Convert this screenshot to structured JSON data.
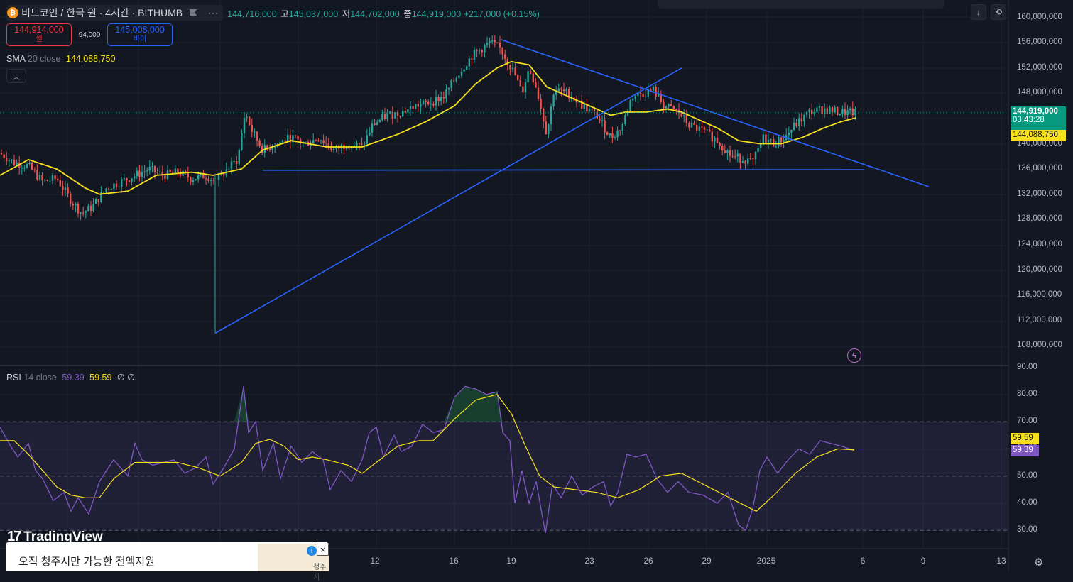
{
  "header": {
    "symbol": "비트코인 / 한국 원 · 4시간 · BITHUMB",
    "coin_icon": "bitcoin-icon",
    "ohlc": {
      "open_value": "144,716,000",
      "high_label": "고",
      "high_value": "145,037,000",
      "low_label": "저",
      "low_value": "144,702,000",
      "close_label": "종",
      "close_value": "144,919,000",
      "change": "+217,000 (+0.15%)"
    },
    "more": "···"
  },
  "trade": {
    "sell_price": "144,914,000",
    "sell_label": "셀",
    "spread": "94,000",
    "buy_price": "145,008,000",
    "buy_label": "바이"
  },
  "sma_legend": {
    "name": "SMA",
    "params": "20 close",
    "value": "144,088,750"
  },
  "rsi_legend": {
    "name": "RSI",
    "params": "14 close",
    "value1": "59.39",
    "value2": "59.59",
    "na": "∅ ∅"
  },
  "price_axis": {
    "labels": [
      "160,000,000",
      "156,000,000",
      "152,000,000",
      "148,000,000",
      "140,000,000",
      "136,000,000",
      "132,000,000",
      "128,000,000",
      "124,000,000",
      "120,000,000",
      "116,000,000",
      "112,000,000",
      "108,000,000"
    ],
    "last_price": "144,919,000",
    "countdown": "03:43:28",
    "sma_price": "144,088,750"
  },
  "rsi_axis": {
    "labels": [
      "90.00",
      "80.00",
      "70.00",
      "60.00",
      "50.00",
      "40.00",
      "30.00"
    ],
    "tag_yellow": "59.59",
    "tag_purple": "59.39"
  },
  "date_axis": [
    "12",
    "16",
    "19",
    "23",
    "26",
    "29",
    "2025",
    "6",
    "9",
    "13"
  ],
  "logo": "TradingView",
  "ad": {
    "text": "오직 청주시만 가능한 전액지원",
    "image_text": "청주시",
    "info_icon": "i",
    "close_icon": "×"
  },
  "colors": {
    "background": "#131722",
    "up": "#26a69a",
    "down": "#ef5350",
    "sma": "#f7e01c",
    "rsi": "#7e57c2",
    "trendline": "#2962ff"
  },
  "chart_data": [
    {
      "type": "candlestick",
      "title": "비트코인 / 한국 원 · 4시간 · BITHUMB",
      "ylim": [
        106000000,
        162000000
      ],
      "x_ticks": [
        "12",
        "16",
        "19",
        "23",
        "26",
        "29",
        "2025",
        "6",
        "9",
        "13"
      ],
      "close_path": [
        [
          0,
          138.5
        ],
        [
          20,
          137
        ],
        [
          40,
          136.5
        ],
        [
          60,
          134
        ],
        [
          80,
          134.5
        ],
        [
          100,
          131
        ],
        [
          115,
          129
        ],
        [
          130,
          130
        ],
        [
          150,
          133
        ],
        [
          170,
          134
        ],
        [
          190,
          135
        ],
        [
          210,
          136
        ],
        [
          230,
          135
        ],
        [
          250,
          135.5
        ],
        [
          270,
          134.5
        ],
        [
          290,
          135
        ],
        [
          305,
          134
        ],
        [
          320,
          136
        ],
        [
          335,
          137.5
        ],
        [
          345,
          145
        ],
        [
          355,
          142
        ],
        [
          370,
          139
        ],
        [
          390,
          140
        ],
        [
          410,
          141
        ],
        [
          430,
          140
        ],
        [
          450,
          141
        ],
        [
          470,
          139
        ],
        [
          490,
          140
        ],
        [
          510,
          139.5
        ],
        [
          525,
          143
        ],
        [
          545,
          144.5
        ],
        [
          565,
          145
        ],
        [
          585,
          146
        ],
        [
          605,
          146.5
        ],
        [
          625,
          147.5
        ],
        [
          645,
          151
        ],
        [
          665,
          154
        ],
        [
          690,
          156
        ],
        [
          705,
          155
        ],
        [
          715,
          153
        ],
        [
          725,
          151
        ],
        [
          735,
          148
        ],
        [
          745,
          152
        ],
        [
          755,
          149
        ],
        [
          770,
          141.5
        ],
        [
          780,
          148.5
        ],
        [
          800,
          148
        ],
        [
          820,
          146
        ],
        [
          840,
          144.5
        ],
        [
          860,
          141
        ],
        [
          875,
          142.5
        ],
        [
          890,
          147.5
        ],
        [
          905,
          148
        ],
        [
          920,
          148.5
        ],
        [
          935,
          146
        ],
        [
          955,
          145
        ],
        [
          970,
          143
        ],
        [
          990,
          142
        ],
        [
          1010,
          140.5
        ],
        [
          1030,
          138
        ],
        [
          1050,
          137.5
        ],
        [
          1060,
          137
        ],
        [
          1075,
          141
        ],
        [
          1090,
          140
        ],
        [
          1105,
          141
        ],
        [
          1120,
          143
        ],
        [
          1140,
          145
        ],
        [
          1160,
          145.5
        ],
        [
          1180,
          145
        ],
        [
          1205,
          144.9
        ]
      ],
      "sma_path": [
        [
          0,
          135
        ],
        [
          40,
          137.5
        ],
        [
          80,
          136
        ],
        [
          120,
          133
        ],
        [
          140,
          132
        ],
        [
          180,
          132.5
        ],
        [
          220,
          135
        ],
        [
          270,
          135.5
        ],
        [
          300,
          135
        ],
        [
          340,
          136
        ],
        [
          370,
          139
        ],
        [
          410,
          140.5
        ],
        [
          460,
          139.5
        ],
        [
          510,
          139.5
        ],
        [
          560,
          141.5
        ],
        [
          600,
          143.5
        ],
        [
          640,
          146
        ],
        [
          670,
          149.5
        ],
        [
          700,
          152
        ],
        [
          720,
          153
        ],
        [
          745,
          152.5
        ],
        [
          770,
          149
        ],
        [
          800,
          147.5
        ],
        [
          830,
          146
        ],
        [
          860,
          144.5
        ],
        [
          880,
          145
        ],
        [
          910,
          145
        ],
        [
          940,
          145.5
        ],
        [
          960,
          145
        ],
        [
          980,
          144
        ],
        [
          1010,
          142.5
        ],
        [
          1040,
          140.5
        ],
        [
          1070,
          140
        ],
        [
          1100,
          140
        ],
        [
          1130,
          141
        ],
        [
          1160,
          142.5
        ],
        [
          1185,
          143.5
        ],
        [
          1205,
          144.09
        ]
      ],
      "trendlines": [
        {
          "name": "horizontal-support",
          "from": [
            370,
            135.8
          ],
          "to": [
            1217,
            135.9
          ]
        },
        {
          "name": "descending-resistance",
          "from": [
            705,
            156.5
          ],
          "to": [
            1308,
            133.2
          ]
        },
        {
          "name": "ascending-line",
          "from": [
            303,
            110
          ],
          "to": [
            960,
            152
          ]
        }
      ],
      "last_price": 144919000,
      "sma_value": 144088750
    },
    {
      "type": "line",
      "title": "RSI 14 close",
      "ylim": [
        27,
        92
      ],
      "bands": {
        "upper": 70,
        "lower": 30,
        "middle": 50
      },
      "rsi_path": [
        [
          0,
          68
        ],
        [
          15,
          61
        ],
        [
          25,
          57
        ],
        [
          40,
          62
        ],
        [
          50,
          52
        ],
        [
          60,
          49
        ],
        [
          75,
          41
        ],
        [
          90,
          44
        ],
        [
          100,
          37
        ],
        [
          110,
          42
        ],
        [
          125,
          36
        ],
        [
          140,
          48
        ],
        [
          160,
          56
        ],
        [
          180,
          50
        ],
        [
          190,
          62
        ],
        [
          200,
          56
        ],
        [
          215,
          54
        ],
        [
          230,
          55
        ],
        [
          245,
          56
        ],
        [
          260,
          51
        ],
        [
          275,
          53
        ],
        [
          290,
          57
        ],
        [
          300,
          47
        ],
        [
          315,
          53
        ],
        [
          330,
          60
        ],
        [
          343,
          83
        ],
        [
          350,
          66
        ],
        [
          360,
          70
        ],
        [
          370,
          52
        ],
        [
          385,
          62
        ],
        [
          395,
          49
        ],
        [
          410,
          61
        ],
        [
          425,
          55
        ],
        [
          440,
          59
        ],
        [
          455,
          56
        ],
        [
          465,
          45
        ],
        [
          480,
          52
        ],
        [
          495,
          48
        ],
        [
          510,
          56
        ],
        [
          520,
          66
        ],
        [
          530,
          68
        ],
        [
          540,
          57
        ],
        [
          555,
          65
        ],
        [
          565,
          59
        ],
        [
          580,
          61
        ],
        [
          595,
          69
        ],
        [
          610,
          66
        ],
        [
          625,
          67
        ],
        [
          640,
          79
        ],
        [
          655,
          83
        ],
        [
          670,
          82
        ],
        [
          685,
          80
        ],
        [
          700,
          81
        ],
        [
          708,
          66
        ],
        [
          718,
          63
        ],
        [
          725,
          40
        ],
        [
          735,
          52
        ],
        [
          745,
          40
        ],
        [
          755,
          48
        ],
        [
          768,
          29
        ],
        [
          778,
          47
        ],
        [
          790,
          42
        ],
        [
          805,
          50
        ],
        [
          820,
          43
        ],
        [
          835,
          46
        ],
        [
          850,
          48
        ],
        [
          860,
          39
        ],
        [
          870,
          44
        ],
        [
          883,
          58
        ],
        [
          895,
          57
        ],
        [
          910,
          58
        ],
        [
          925,
          49
        ],
        [
          940,
          44
        ],
        [
          955,
          48
        ],
        [
          970,
          44
        ],
        [
          990,
          43
        ],
        [
          1010,
          40
        ],
        [
          1025,
          44
        ],
        [
          1040,
          32
        ],
        [
          1050,
          30
        ],
        [
          1060,
          38
        ],
        [
          1070,
          52
        ],
        [
          1080,
          57
        ],
        [
          1095,
          51
        ],
        [
          1110,
          56
        ],
        [
          1125,
          60
        ],
        [
          1140,
          58
        ],
        [
          1155,
          63
        ],
        [
          1170,
          62
        ],
        [
          1185,
          61
        ],
        [
          1203,
          59.4
        ]
      ],
      "signal_path": [
        [
          0,
          63
        ],
        [
          20,
          63
        ],
        [
          40,
          58
        ],
        [
          60,
          52
        ],
        [
          80,
          46
        ],
        [
          100,
          43
        ],
        [
          120,
          42
        ],
        [
          140,
          42
        ],
        [
          160,
          49
        ],
        [
          190,
          55
        ],
        [
          220,
          55
        ],
        [
          250,
          55
        ],
        [
          280,
          53
        ],
        [
          310,
          50
        ],
        [
          340,
          55
        ],
        [
          360,
          62
        ],
        [
          380,
          63.5
        ],
        [
          400,
          61
        ],
        [
          420,
          56
        ],
        [
          440,
          57
        ],
        [
          460,
          56
        ],
        [
          490,
          54
        ],
        [
          510,
          51
        ],
        [
          530,
          55
        ],
        [
          560,
          61
        ],
        [
          590,
          63
        ],
        [
          610,
          63
        ],
        [
          640,
          71
        ],
        [
          670,
          78
        ],
        [
          700,
          80
        ],
        [
          720,
          73
        ],
        [
          740,
          61
        ],
        [
          760,
          50
        ],
        [
          780,
          46
        ],
        [
          810,
          45
        ],
        [
          840,
          44
        ],
        [
          870,
          42
        ],
        [
          900,
          45
        ],
        [
          930,
          50
        ],
        [
          960,
          51
        ],
        [
          990,
          47
        ],
        [
          1020,
          43
        ],
        [
          1050,
          39
        ],
        [
          1065,
          37
        ],
        [
          1090,
          43
        ],
        [
          1120,
          51
        ],
        [
          1150,
          57
        ],
        [
          1180,
          60
        ],
        [
          1203,
          59.6
        ]
      ],
      "value": 59.39,
      "signal_value": 59.59
    }
  ]
}
